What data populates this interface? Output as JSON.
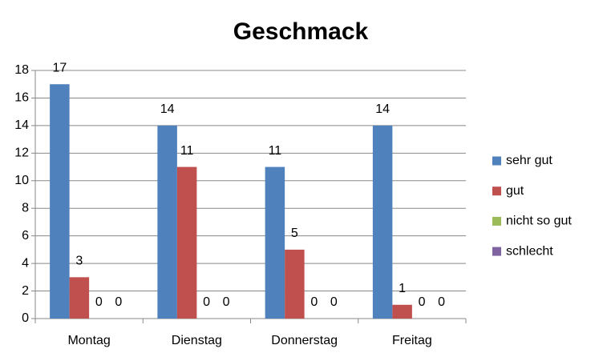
{
  "chart_data": {
    "type": "bar",
    "title": "Geschmack",
    "categories": [
      "Montag",
      "Dienstag",
      "Donnerstag",
      "Freitag"
    ],
    "series": [
      {
        "name": "sehr gut",
        "color": "#4f81bd",
        "values": [
          17,
          14,
          11,
          14
        ]
      },
      {
        "name": "gut",
        "color": "#c0504d",
        "values": [
          3,
          11,
          5,
          1
        ]
      },
      {
        "name": "nicht so gut",
        "color": "#9bbb59",
        "values": [
          0,
          0,
          0,
          0
        ]
      },
      {
        "name": "schlecht",
        "color": "#8064a2",
        "values": [
          0,
          0,
          0,
          0
        ]
      }
    ],
    "ylim": [
      0,
      18
    ],
    "yticks": [
      0,
      2,
      4,
      6,
      8,
      10,
      12,
      14,
      16,
      18
    ],
    "grid": true,
    "legend": "right"
  }
}
